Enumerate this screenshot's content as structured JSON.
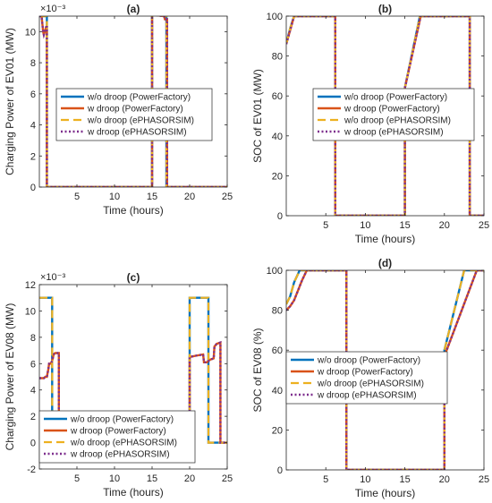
{
  "legend_labels": [
    "w/o droop (PowerFactory)",
    "w droop (PowerFactory)",
    "w/o droop (ePHASORSIM)",
    "w droop (ePHASORSIM)"
  ],
  "series_styles": [
    {
      "color": "#0072BD",
      "dash": "solid"
    },
    {
      "color": "#D95319",
      "dash": "solid"
    },
    {
      "color": "#EDB120",
      "dash": "dashed"
    },
    {
      "color": "#7E2F8E",
      "dash": "dotted"
    }
  ],
  "chart_data": [
    {
      "type": "line",
      "title": "(a)",
      "xlabel": "Time (hours)",
      "ylabel": "Charging Power of EV01 (MW)",
      "exponent_label": "×10⁻³",
      "xlim": [
        0,
        25
      ],
      "ylim": [
        0,
        11
      ],
      "xticks": [
        5,
        10,
        15,
        20,
        25
      ],
      "yticks": [
        0,
        2,
        4,
        6,
        8,
        10
      ],
      "legend_position": "center",
      "series": [
        {
          "x": [
            0,
            0.5,
            0.9,
            1.0,
            1.0,
            15.0,
            15.0,
            16.9,
            16.9,
            25
          ],
          "y": [
            11,
            11,
            11,
            11,
            0,
            0,
            11.1,
            11.0,
            0,
            0
          ]
        },
        {
          "x": [
            0,
            0.3,
            0.5,
            0.6,
            0.9,
            1.0,
            1.0,
            15.0,
            15.0,
            16.6,
            16.7,
            17.0,
            17.0,
            25
          ],
          "y": [
            11,
            11,
            10.0,
            9.8,
            10.3,
            10.3,
            0,
            0,
            11.1,
            11.0,
            10.8,
            10.8,
            0,
            0
          ]
        },
        {
          "x": [
            0,
            0.5,
            0.9,
            1.0,
            1.0,
            15.0,
            15.0,
            16.9,
            16.9,
            25
          ],
          "y": [
            11,
            11,
            11,
            11,
            0,
            0,
            11.1,
            11.0,
            0,
            0
          ]
        },
        {
          "x": [
            0,
            0.3,
            0.5,
            0.6,
            0.9,
            1.0,
            1.0,
            15.0,
            15.0,
            16.6,
            16.7,
            17.0,
            17.0,
            25
          ],
          "y": [
            11,
            11,
            10.0,
            9.8,
            10.3,
            10.3,
            0,
            0,
            11.1,
            11.0,
            10.8,
            10.8,
            0,
            0
          ]
        }
      ]
    },
    {
      "type": "line",
      "title": "(b)",
      "xlabel": "Time (hours)",
      "ylabel": "SOC of EV01 (MW)",
      "xlim": [
        0,
        25
      ],
      "ylim": [
        0,
        100
      ],
      "xticks": [
        5,
        10,
        15,
        20,
        25
      ],
      "yticks": [
        0,
        20,
        40,
        60,
        80,
        100
      ],
      "legend_position": "center",
      "series": [
        {
          "x": [
            0,
            0.5,
            1.0,
            6.2,
            6.2,
            15.0,
            15.0,
            16.9,
            23.2,
            23.2,
            25
          ],
          "y": [
            86,
            94,
            100,
            100,
            0,
            0,
            64,
            100,
            100,
            0,
            0
          ]
        },
        {
          "x": [
            0,
            0.5,
            1.0,
            6.2,
            6.2,
            15.0,
            15.0,
            17.0,
            23.2,
            23.2,
            25
          ],
          "y": [
            86,
            93,
            100,
            100,
            0,
            0,
            64,
            100,
            100,
            0,
            0
          ]
        },
        {
          "x": [
            0,
            0.5,
            1.0,
            6.2,
            6.2,
            15.0,
            15.0,
            16.9,
            23.2,
            23.2,
            25
          ],
          "y": [
            86,
            94,
            100,
            100,
            0,
            0,
            64,
            100,
            100,
            0,
            0
          ]
        },
        {
          "x": [
            0,
            0.5,
            1.0,
            6.2,
            6.2,
            15.0,
            15.0,
            17.0,
            23.2,
            23.2,
            25
          ],
          "y": [
            86,
            93,
            100,
            100,
            0,
            0,
            64,
            100,
            100,
            0,
            0
          ]
        }
      ]
    },
    {
      "type": "line",
      "title": "(c)",
      "xlabel": "Time (hours)",
      "ylabel": "Charging Power of EV08 (MW)",
      "exponent_label": "×10⁻³",
      "xlim": [
        0,
        25
      ],
      "ylim": [
        -2,
        12
      ],
      "xticks": [
        5,
        10,
        15,
        20,
        25
      ],
      "yticks": [
        -2,
        0,
        2,
        4,
        6,
        8,
        10,
        12
      ],
      "legend_position": "lower center",
      "series": [
        {
          "x": [
            0,
            1.7,
            1.7,
            20.0,
            20.0,
            22.5,
            22.5,
            25
          ],
          "y": [
            11,
            11,
            0,
            0,
            11,
            11,
            0,
            0
          ]
        },
        {
          "x": [
            0,
            0.6,
            0.8,
            1.0,
            1.2,
            1.3,
            1.5,
            1.7,
            1.9,
            2.1,
            2.4,
            2.6,
            2.6,
            20.0,
            20.0,
            20.8,
            21.8,
            21.9,
            22.3,
            22.5,
            22.7,
            23.2,
            23.3,
            23.6,
            24.1,
            24.1,
            25
          ],
          "y": [
            4.9,
            4.9,
            5.0,
            5.0,
            5.6,
            6.0,
            6.0,
            6.2,
            6.7,
            6.8,
            6.8,
            6.8,
            0,
            0,
            6.5,
            6.6,
            6.7,
            6.1,
            6.1,
            6.2,
            6.3,
            6.4,
            7.3,
            7.5,
            7.6,
            0,
            0
          ]
        },
        {
          "x": [
            0,
            1.7,
            1.7,
            20.0,
            20.0,
            22.5,
            22.5,
            25
          ],
          "y": [
            11,
            11,
            0,
            0,
            11,
            11,
            0,
            0
          ]
        },
        {
          "x": [
            0,
            0.6,
            0.8,
            1.0,
            1.2,
            1.3,
            1.5,
            1.7,
            1.9,
            2.1,
            2.4,
            2.6,
            2.6,
            20.0,
            20.0,
            20.8,
            21.8,
            21.9,
            22.3,
            22.5,
            22.7,
            23.2,
            23.3,
            23.6,
            24.1,
            24.1,
            25
          ],
          "y": [
            4.9,
            4.9,
            5.0,
            5.0,
            5.6,
            6.0,
            6.0,
            6.2,
            6.7,
            6.8,
            6.8,
            6.8,
            0,
            0,
            6.5,
            6.6,
            6.7,
            6.1,
            6.1,
            6.2,
            6.3,
            6.4,
            7.3,
            7.5,
            7.6,
            0,
            0
          ]
        }
      ]
    },
    {
      "type": "line",
      "title": "(d)",
      "xlabel": "Time (hours)",
      "ylabel": "SOC of EV08 (%)",
      "xlim": [
        0,
        25
      ],
      "ylim": [
        0,
        100
      ],
      "xticks": [
        5,
        10,
        15,
        20,
        25
      ],
      "yticks": [
        0,
        20,
        40,
        60,
        80,
        100
      ],
      "legend_position": "lower left",
      "series": [
        {
          "x": [
            0,
            0.5,
            1.0,
            1.7,
            7.6,
            7.6,
            20.0,
            20.0,
            22.5,
            25
          ],
          "y": [
            83,
            87,
            94,
            100,
            100,
            0,
            0,
            60,
            100,
            100
          ]
        },
        {
          "x": [
            0,
            0.5,
            1.0,
            2.0,
            2.6,
            7.6,
            7.6,
            20.0,
            20.0,
            22.0,
            24.1,
            25
          ],
          "y": [
            80,
            82,
            85,
            95,
            100,
            100,
            0,
            0,
            57,
            78,
            100,
            100
          ]
        },
        {
          "x": [
            0,
            0.5,
            1.0,
            1.7,
            7.6,
            7.6,
            20.0,
            20.0,
            22.5,
            25
          ],
          "y": [
            83,
            87,
            94,
            100,
            100,
            0,
            0,
            60,
            100,
            100
          ]
        },
        {
          "x": [
            0,
            0.5,
            1.0,
            2.0,
            2.6,
            7.6,
            7.6,
            20.0,
            20.0,
            22.0,
            24.1,
            25
          ],
          "y": [
            80,
            82,
            85,
            95,
            100,
            100,
            0,
            0,
            57,
            78,
            100,
            100
          ]
        }
      ]
    }
  ]
}
